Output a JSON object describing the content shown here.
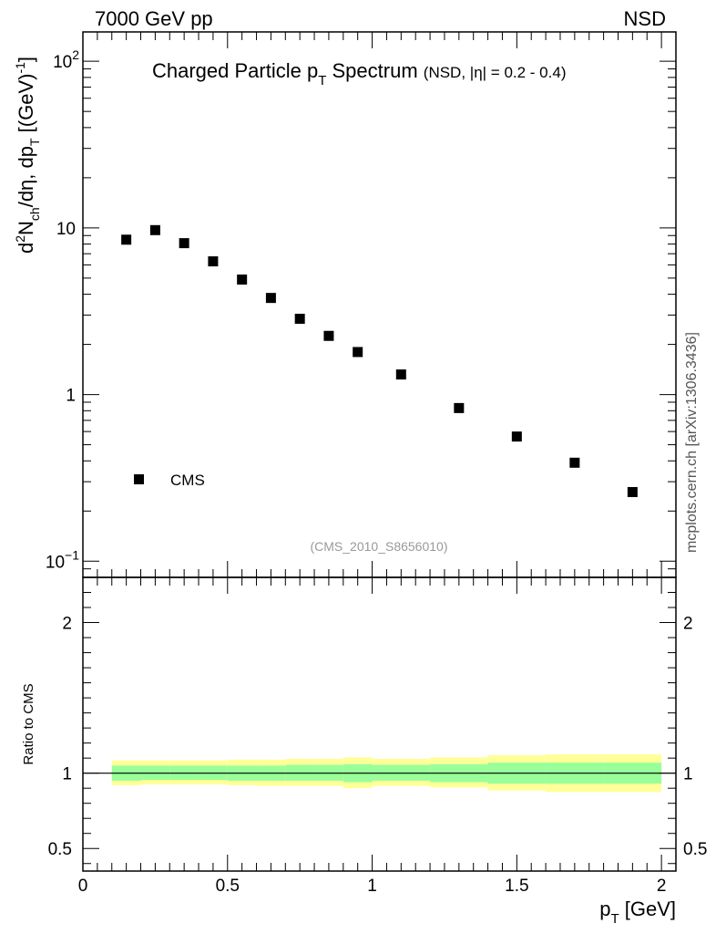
{
  "header": {
    "left": "7000 GeV pp",
    "right": "NSD"
  },
  "side_label": "mcplots.cern.ch [arXiv:1306.3436]",
  "chart_data": [
    {
      "type": "scatter",
      "title_main": "Charged Particle p",
      "title_main_sub": "T",
      "title_main_tail": " Spectrum",
      "title_note": "(NSD, |η| = 0.2 - 0.4)",
      "ylabel": {
        "d": "d",
        "sup2": "2",
        "n": "N",
        "ch": "ch",
        "rest": "/dη, dp",
        "t": "T",
        "unit": " [(GeV)",
        "minus1": "-1",
        "close": "]"
      },
      "yscale": "log",
      "ylim": [
        0.08,
        150
      ],
      "xlim": [
        0,
        2.05
      ],
      "yticks": [
        {
          "value": 0.1,
          "base": "10",
          "exp": "−1"
        },
        {
          "value": 1,
          "base": "1",
          "exp": ""
        },
        {
          "value": 10,
          "base": "10",
          "exp": ""
        },
        {
          "value": 100,
          "base": "10",
          "exp": "2"
        }
      ],
      "legend": {
        "label": "CMS",
        "position": "bottom-left"
      },
      "watermark": "(CMS_2010_S8656010)",
      "series": [
        {
          "name": "CMS",
          "marker": "square",
          "x": [
            0.15,
            0.25,
            0.35,
            0.45,
            0.55,
            0.65,
            0.75,
            0.85,
            0.95,
            1.1,
            1.3,
            1.5,
            1.7,
            1.9
          ],
          "y": [
            8.5,
            9.7,
            8.1,
            6.3,
            4.9,
            3.8,
            2.85,
            2.25,
            1.8,
            1.32,
            0.83,
            0.56,
            0.39,
            0.26
          ]
        }
      ]
    },
    {
      "type": "area",
      "ylabel": "Ratio to CMS",
      "xlabel": "p",
      "xlabel_sub": "T",
      "xlabel_unit": " [GeV]",
      "xlim": [
        0,
        2.05
      ],
      "ylim": [
        0.35,
        2.3
      ],
      "yticks": [
        {
          "value": 0.5,
          "label": "0.5"
        },
        {
          "value": 1,
          "label": "1"
        },
        {
          "value": 2,
          "label": "2"
        }
      ],
      "xticks": [
        {
          "value": 0,
          "label": "0"
        },
        {
          "value": 0.5,
          "label": "0.5"
        },
        {
          "value": 1,
          "label": "1"
        },
        {
          "value": 1.5,
          "label": "1.5"
        },
        {
          "value": 2,
          "label": "2"
        }
      ],
      "reference_line": 1,
      "bands": {
        "edges": [
          0.1,
          0.2,
          0.3,
          0.4,
          0.5,
          0.6,
          0.7,
          0.8,
          0.9,
          1.0,
          1.2,
          1.4,
          1.6,
          1.8,
          2.0
        ],
        "stat_color": "#99ff99",
        "total_color": "#ffff99",
        "stat_low": [
          0.95,
          0.955,
          0.955,
          0.955,
          0.95,
          0.95,
          0.95,
          0.95,
          0.94,
          0.95,
          0.94,
          0.93,
          0.93,
          0.93
        ],
        "stat_high": [
          1.05,
          1.05,
          1.05,
          1.05,
          1.05,
          1.05,
          1.055,
          1.055,
          1.06,
          1.055,
          1.06,
          1.07,
          1.07,
          1.07
        ],
        "total_low": [
          0.92,
          0.925,
          0.925,
          0.925,
          0.92,
          0.915,
          0.915,
          0.915,
          0.9,
          0.915,
          0.905,
          0.885,
          0.875,
          0.875
        ],
        "total_high": [
          1.085,
          1.085,
          1.085,
          1.085,
          1.09,
          1.09,
          1.095,
          1.095,
          1.105,
          1.095,
          1.105,
          1.12,
          1.125,
          1.125
        ]
      }
    }
  ]
}
